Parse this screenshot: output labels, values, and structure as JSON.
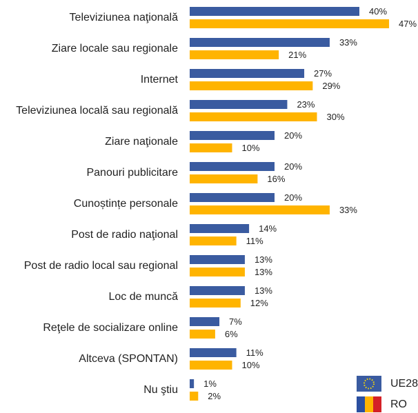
{
  "chart_data": {
    "type": "bar",
    "orientation": "horizontal",
    "categories": [
      "Televiziunea naţională",
      "Ziare locale sau regionale",
      "Internet",
      "Televiziunea locală sau regională",
      "Ziare naţionale",
      "Panouri publicitare",
      "Cunoștințe personale",
      "Post de radio naţional",
      "Post de radio local sau regional",
      "Loc de muncă",
      "Reţele de socializare online",
      "Altceva (SPONTAN)",
      "Nu ştiu"
    ],
    "series": [
      {
        "name": "UE28",
        "color": "#3a5ba0",
        "values": [
          40,
          33,
          27,
          23,
          20,
          20,
          20,
          14,
          13,
          13,
          7,
          11,
          1
        ],
        "value_labels": [
          "40%",
          "33%",
          "27%",
          "23%",
          "20%",
          "20%",
          "20%",
          "14%",
          "13%",
          "13%",
          "7%",
          "11%",
          "1%"
        ]
      },
      {
        "name": "RO",
        "color": "#ffb400",
        "values": [
          47,
          21,
          29,
          30,
          10,
          16,
          33,
          11,
          13,
          12,
          6,
          10,
          2
        ],
        "value_labels": [
          "47%",
          "21%",
          "29%",
          "30%",
          "10%",
          "16%",
          "33%",
          "11%",
          "13%",
          "12%",
          "6%",
          "10%",
          "2%"
        ]
      }
    ]
  }
}
